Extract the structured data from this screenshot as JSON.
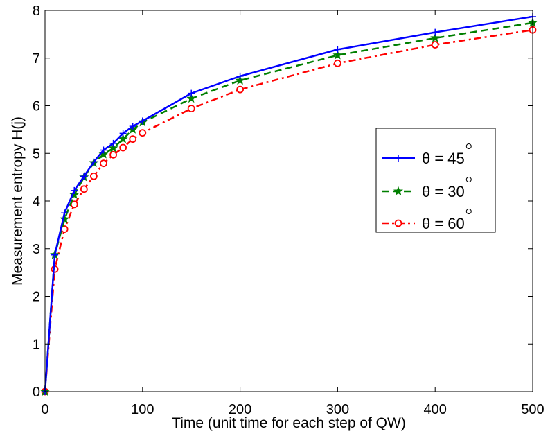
{
  "chart_data": {
    "type": "line",
    "xlabel": "Time (unit time for each step of QW)",
    "ylabel": "Measurement entropy H(j)",
    "xlim": [
      0,
      500
    ],
    "ylim": [
      0,
      8
    ],
    "xticks": [
      "0",
      "100",
      "200",
      "300",
      "400",
      "500"
    ],
    "yticks": [
      "0",
      "1",
      "2",
      "3",
      "4",
      "5",
      "6",
      "7",
      "8"
    ],
    "grid": false,
    "legend_position": "right",
    "x": [
      0,
      10,
      20,
      30,
      40,
      50,
      60,
      70,
      80,
      90,
      100,
      150,
      200,
      300,
      400,
      500
    ],
    "series": [
      {
        "name": "θ = 45°",
        "name_text": "θ = 45",
        "color": "#0000ff",
        "line_style": "solid",
        "marker": "plus",
        "values": [
          0,
          2.87,
          3.75,
          4.22,
          4.52,
          4.82,
          5.07,
          5.21,
          5.42,
          5.57,
          5.68,
          6.26,
          6.62,
          7.18,
          7.54,
          7.87
        ]
      },
      {
        "name": "θ = 30°",
        "name_text": "θ = 30",
        "color": "#007f00",
        "line_style": "dashed",
        "marker": "star",
        "values": [
          0,
          2.87,
          3.62,
          4.13,
          4.5,
          4.8,
          4.98,
          5.11,
          5.3,
          5.5,
          5.65,
          6.15,
          6.53,
          7.06,
          7.42,
          7.74
        ]
      },
      {
        "name": "θ = 60°",
        "name_text": "θ = 60",
        "color": "#ff0000",
        "line_style": "dashdot",
        "marker": "circle",
        "values": [
          0,
          2.57,
          3.41,
          3.93,
          4.25,
          4.52,
          4.79,
          4.97,
          5.12,
          5.3,
          5.43,
          5.94,
          6.34,
          6.89,
          7.28,
          7.59
        ]
      }
    ]
  }
}
